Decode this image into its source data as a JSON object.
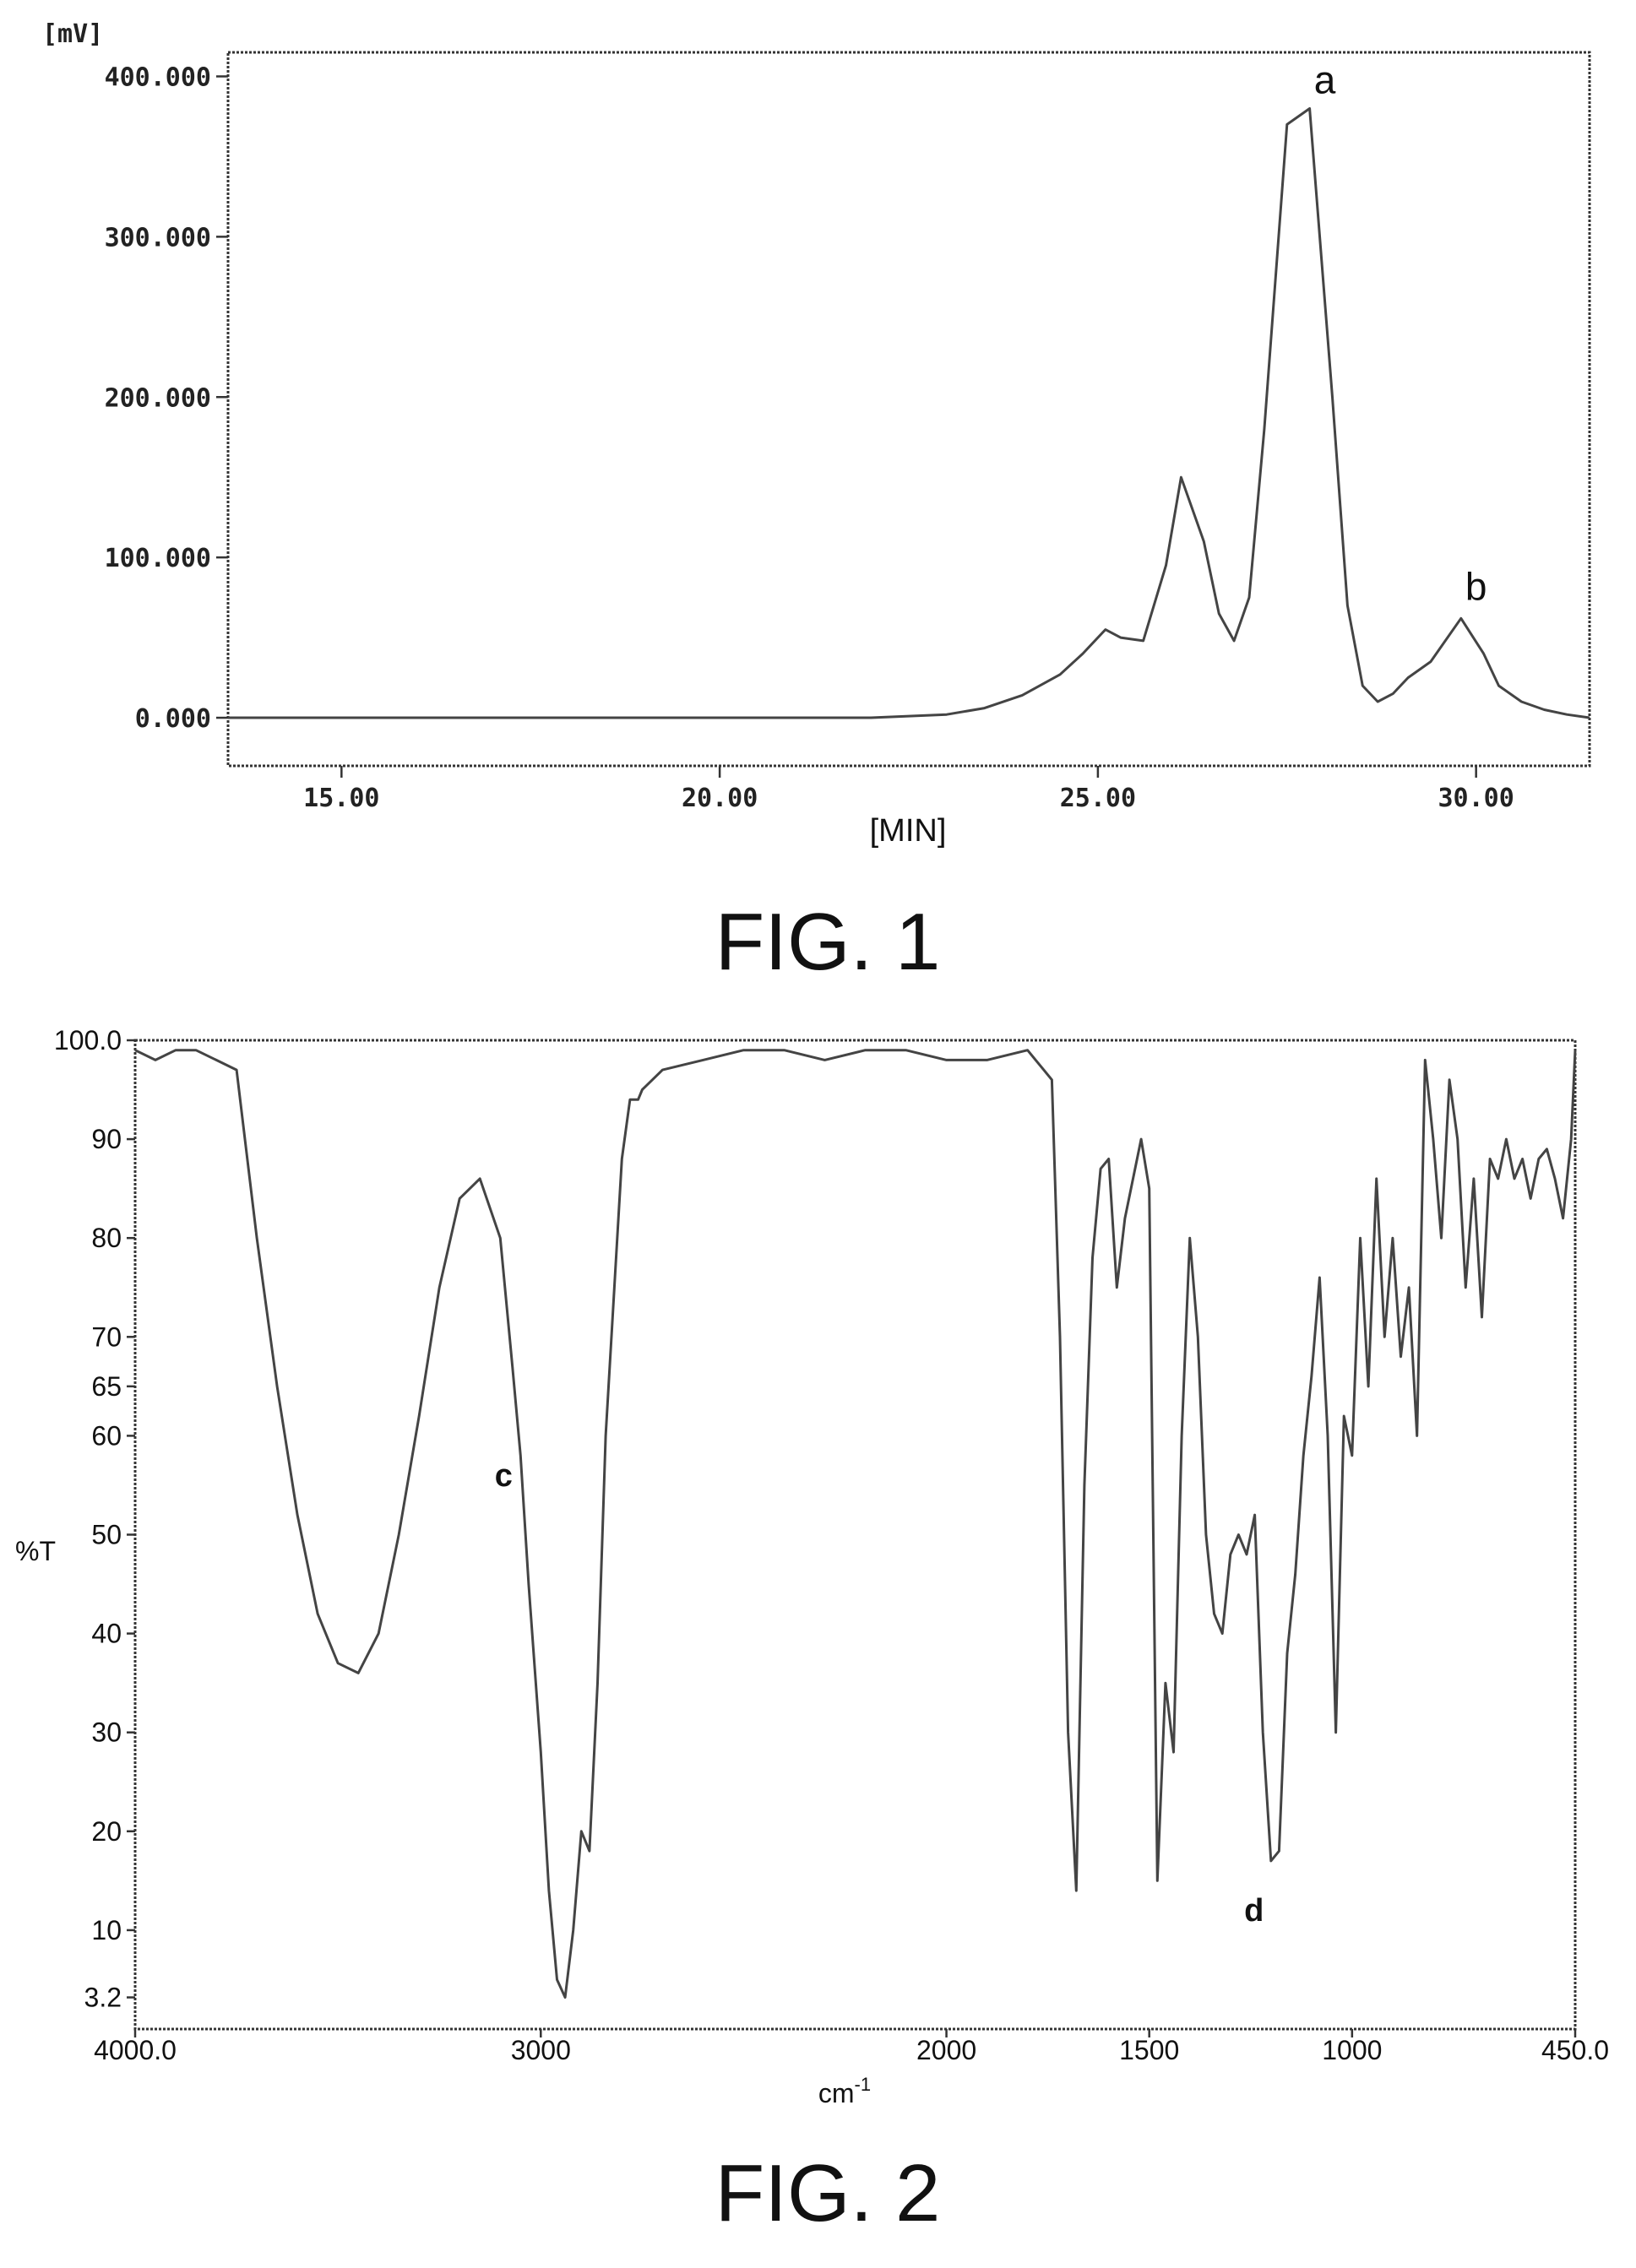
{
  "chart_data": [
    {
      "type": "line",
      "caption": "FIG. 1",
      "xlabel": "[MIN]",
      "ylabel": "[mV]",
      "xlim": [
        13.5,
        31.5
      ],
      "ylim": [
        -30,
        415
      ],
      "x_ticks": [
        {
          "value": 15,
          "label": "15.00"
        },
        {
          "value": 20,
          "label": "20.00"
        },
        {
          "value": 25,
          "label": "25.00"
        },
        {
          "value": 30,
          "label": "30.00"
        }
      ],
      "y_ticks": [
        {
          "value": 0,
          "label": "0.000"
        },
        {
          "value": 100,
          "label": "100.000"
        },
        {
          "value": 200,
          "label": "200.000"
        },
        {
          "value": 300,
          "label": "300.000"
        },
        {
          "value": 400,
          "label": "400.000"
        }
      ],
      "grid": false,
      "series": [
        {
          "x": [
            13.5,
            15,
            17,
            19,
            21,
            22,
            23,
            23.5,
            24,
            24.5,
            24.8,
            25.1,
            25.3,
            25.6,
            25.9,
            26.1,
            26.4,
            26.6,
            26.8,
            27,
            27.2,
            27.5,
            27.8,
            28.1,
            28.3,
            28.5,
            28.7,
            28.9,
            29.1,
            29.4,
            29.8,
            30.1,
            30.3,
            30.6,
            30.9,
            31.2,
            31.5
          ],
          "y": [
            0,
            0,
            0,
            0,
            0,
            0,
            2,
            6,
            14,
            27,
            40,
            55,
            50,
            48,
            95,
            150,
            110,
            65,
            48,
            75,
            180,
            370,
            380,
            200,
            70,
            20,
            10,
            15,
            25,
            35,
            62,
            40,
            20,
            10,
            5,
            2,
            0
          ]
        }
      ],
      "annotations": [
        {
          "label": "a",
          "x": 28.0,
          "y": 382
        },
        {
          "label": "b",
          "x": 30.0,
          "y": 66
        }
      ]
    },
    {
      "type": "line",
      "caption": "FIG. 2",
      "xlabel": "cm-1",
      "xlabel_base": "cm",
      "xlabel_sup": "-1",
      "ylabel": "%T",
      "xlim": [
        4000.0,
        450.0
      ],
      "ylim": [
        0,
        100.0
      ],
      "x_ticks": [
        {
          "value": 4000,
          "label": "4000.0"
        },
        {
          "value": 3000,
          "label": "3000"
        },
        {
          "value": 2000,
          "label": "2000"
        },
        {
          "value": 1500,
          "label": "1500"
        },
        {
          "value": 1000,
          "label": "1000"
        },
        {
          "value": 450,
          "label": "450.0"
        }
      ],
      "y_ticks": [
        {
          "value": 3.2,
          "label": "3.2"
        },
        {
          "value": 10,
          "label": "10"
        },
        {
          "value": 20,
          "label": "20"
        },
        {
          "value": 30,
          "label": "30"
        },
        {
          "value": 40,
          "label": "40"
        },
        {
          "value": 50,
          "label": "50"
        },
        {
          "value": 60,
          "label": "60"
        },
        {
          "value": 65,
          "label": "65"
        },
        {
          "value": 70,
          "label": "70"
        },
        {
          "value": 80,
          "label": "80"
        },
        {
          "value": 90,
          "label": "90"
        },
        {
          "value": 100,
          "label": "100.0"
        }
      ],
      "grid": false,
      "series": [
        {
          "x": [
            4000,
            3950,
            3900,
            3850,
            3800,
            3750,
            3700,
            3650,
            3600,
            3550,
            3500,
            3450,
            3400,
            3350,
            3300,
            3250,
            3200,
            3150,
            3100,
            3070,
            3050,
            3030,
            3000,
            2980,
            2960,
            2940,
            2920,
            2900,
            2880,
            2860,
            2840,
            2800,
            2780,
            2760,
            2750,
            2700,
            2600,
            2500,
            2400,
            2300,
            2200,
            2100,
            2000,
            1900,
            1800,
            1780,
            1760,
            1740,
            1720,
            1700,
            1680,
            1660,
            1640,
            1620,
            1600,
            1580,
            1560,
            1540,
            1520,
            1500,
            1480,
            1460,
            1440,
            1420,
            1400,
            1380,
            1360,
            1340,
            1320,
            1300,
            1280,
            1260,
            1240,
            1220,
            1200,
            1180,
            1160,
            1140,
            1120,
            1100,
            1080,
            1060,
            1040,
            1020,
            1000,
            980,
            960,
            940,
            920,
            900,
            880,
            860,
            840,
            820,
            800,
            780,
            760,
            740,
            720,
            700,
            680,
            660,
            640,
            620,
            600,
            580,
            560,
            540,
            520,
            500,
            480,
            460,
            450
          ],
          "y": [
            99,
            98,
            99,
            99,
            98,
            97,
            80,
            65,
            52,
            42,
            37,
            36,
            40,
            50,
            62,
            75,
            84,
            86,
            80,
            67,
            58,
            45,
            28,
            14,
            5,
            3.2,
            10,
            20,
            18,
            35,
            60,
            88,
            94,
            94,
            95,
            97,
            98,
            99,
            99,
            98,
            99,
            99,
            98,
            98,
            99,
            98,
            97,
            96,
            70,
            30,
            14,
            55,
            78,
            87,
            88,
            75,
            82,
            86,
            90,
            85,
            15,
            35,
            28,
            60,
            80,
            70,
            50,
            42,
            40,
            48,
            50,
            48,
            52,
            30,
            17,
            18,
            38,
            46,
            58,
            66,
            76,
            60,
            30,
            62,
            58,
            80,
            65,
            86,
            70,
            80,
            68,
            75,
            60,
            98,
            90,
            80,
            96,
            90,
            75,
            86,
            72,
            88,
            86,
            90,
            86,
            88,
            84,
            88,
            89,
            86,
            82,
            90,
            99
          ]
        }
      ],
      "annotations": [
        {
          "label": "c",
          "x": 3050,
          "y": 58
        },
        {
          "label": "d",
          "x": 1200,
          "y": 14
        }
      ]
    }
  ]
}
